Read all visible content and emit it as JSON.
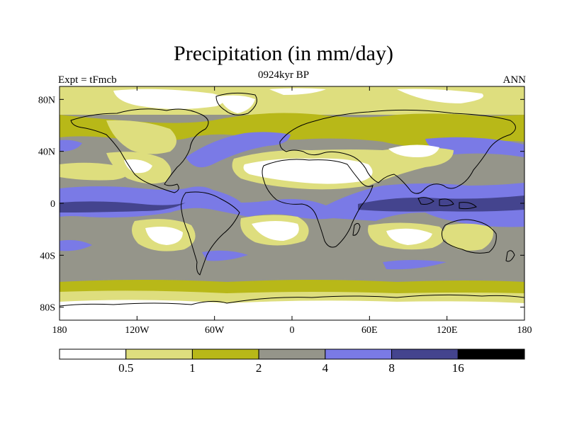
{
  "title": "Precipitation (in mm/day)",
  "subtitle": "0924kyr BP",
  "left_string": "Expt = tFmcb",
  "right_string": "ANN",
  "colors": {
    "level0": "#ffffff",
    "level1": "#dede7e",
    "level2": "#b8b818",
    "level3": "#95958a",
    "level4": "#7a7ae6",
    "level5": "#44448e",
    "level6": "#000000",
    "coast": "#000000"
  },
  "map": {
    "projection": "cylindrical equidistant",
    "lon_labels": [
      "180",
      "120W",
      "60W",
      "0",
      "60E",
      "120E",
      "180"
    ],
    "lat_labels": [
      "80N",
      "40N",
      "0",
      "40S",
      "80S"
    ]
  },
  "colorbar": {
    "labels": [
      "0.5",
      "1",
      "2",
      "4",
      "8",
      "16"
    ]
  }
}
